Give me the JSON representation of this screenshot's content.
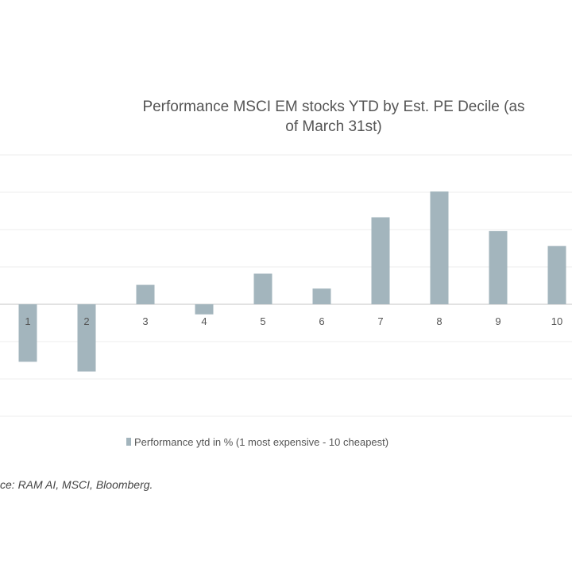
{
  "chart_data": {
    "type": "bar",
    "title_lines": [
      "Performance MSCI EM stocks YTD by Est. PE Decile (as",
      "of March 31st)"
    ],
    "categories": [
      "1",
      "2",
      "3",
      "4",
      "5",
      "6",
      "7",
      "8",
      "9",
      "10"
    ],
    "series": [
      {
        "name": "Performance ytd in % (1 most expensive - 10 cheapest)",
        "values": [
          -1.54,
          -1.8,
          0.52,
          -0.27,
          0.82,
          0.42,
          2.33,
          3.02,
          1.96,
          1.56
        ]
      }
    ],
    "ylim": [
      -3,
      4
    ],
    "y_ticks_printed": false,
    "grid": true,
    "legend_position": "bottom",
    "bar_color": "#a3b5bd",
    "xlabel": "",
    "ylabel": ""
  },
  "source_text": "ce: RAM AI, MSCI, Bloomberg."
}
